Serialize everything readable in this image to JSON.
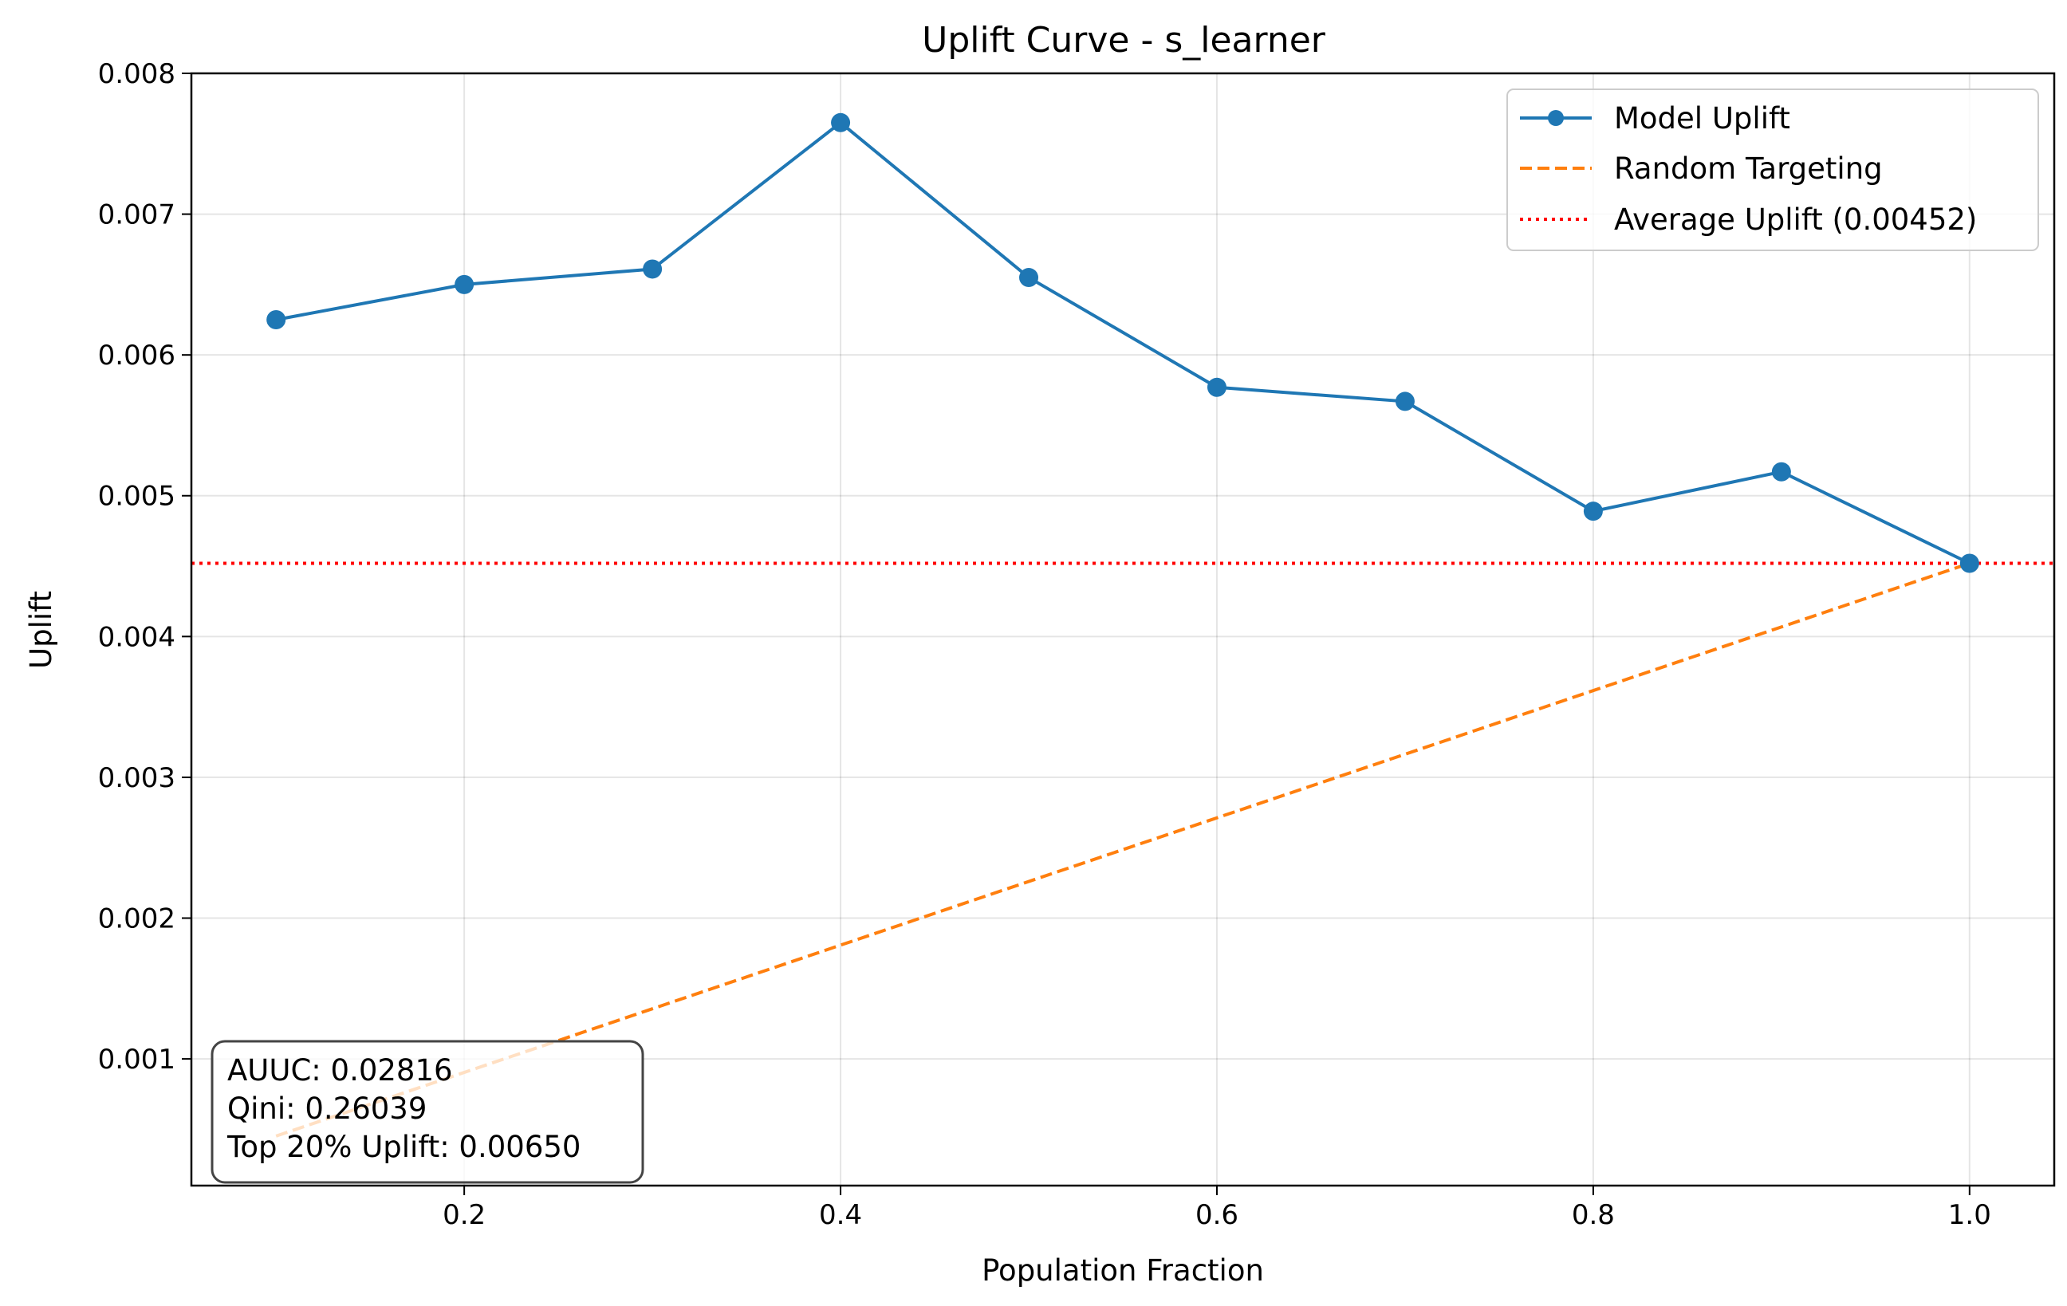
{
  "chart_data": {
    "type": "line",
    "title": "Uplift Curve - s_learner",
    "xlabel": "Population Fraction",
    "ylabel": "Uplift",
    "xlim": [
      0.055,
      1.045
    ],
    "ylim": [
      0.0001,
      0.008
    ],
    "xticks": [
      "0.2",
      "0.4",
      "0.6",
      "0.8",
      "1.0"
    ],
    "xtick_values": [
      0.2,
      0.4,
      0.6,
      0.8,
      1.0
    ],
    "yticks": [
      "0.001",
      "0.002",
      "0.003",
      "0.004",
      "0.005",
      "0.006",
      "0.007",
      "0.008"
    ],
    "ytick_values": [
      0.001,
      0.002,
      0.003,
      0.004,
      0.005,
      0.006,
      0.007,
      0.008
    ],
    "grid": true,
    "legend_position": "upper right",
    "series": [
      {
        "name": "Model Uplift",
        "style": "solid-with-markers",
        "color": "#1f77b4",
        "x": [
          0.1,
          0.2,
          0.3,
          0.4,
          0.5,
          0.6,
          0.7,
          0.8,
          0.9,
          1.0
        ],
        "y": [
          0.00625,
          0.0065,
          0.00661,
          0.00765,
          0.00655,
          0.00577,
          0.00567,
          0.00489,
          0.00517,
          0.00452
        ]
      },
      {
        "name": "Random Targeting",
        "style": "dashed",
        "color": "#ff7f0e",
        "x": [
          0.1,
          1.0
        ],
        "y": [
          0.000452,
          0.00452
        ]
      },
      {
        "name": "Average Uplift (0.00452)",
        "style": "dotted-horizontal",
        "color": "#ff0000",
        "y": 0.00452
      }
    ],
    "annotation": {
      "lines": [
        "AUUC: 0.02816",
        "Qini: 0.26039",
        "Top 20% Uplift: 0.00650"
      ],
      "position": "lower-left"
    }
  }
}
